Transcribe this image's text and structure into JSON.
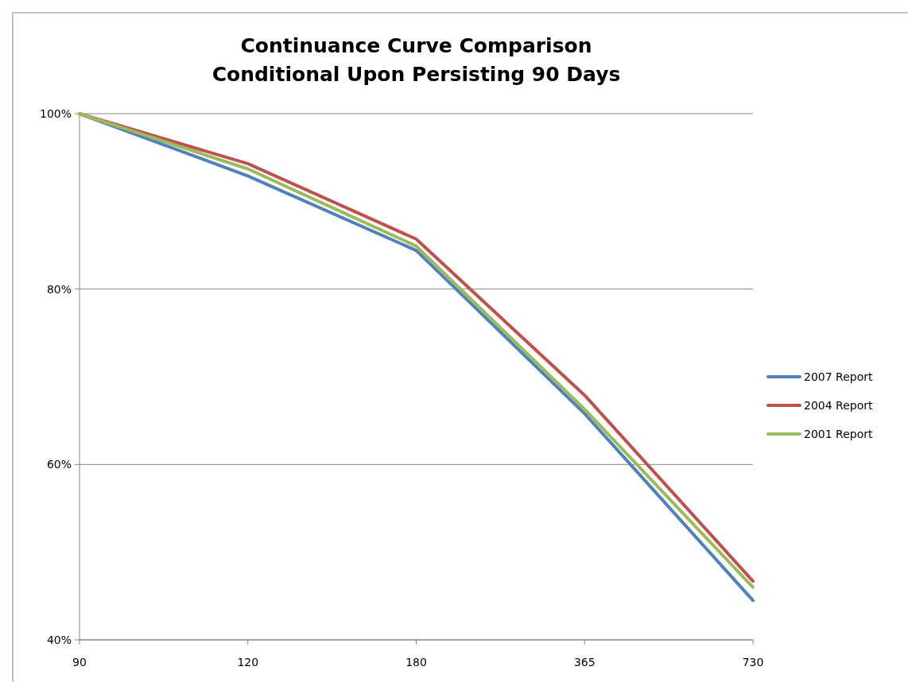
{
  "chart_data": {
    "type": "line",
    "title": "Continuance Curve Comparison\nConditional Upon Persisting 90 Days",
    "categories": [
      "90",
      "120",
      "180",
      "365",
      "730"
    ],
    "series": [
      {
        "name": "2007 Report",
        "color": "#4f81bd",
        "values": [
          100,
          92.9,
          84.4,
          65.8,
          44.5
        ]
      },
      {
        "name": "2004 Report",
        "color": "#c0504d",
        "values": [
          100,
          94.3,
          85.7,
          67.9,
          46.7
        ]
      },
      {
        "name": "2001 Report",
        "color": "#9bbb59",
        "values": [
          100,
          93.7,
          84.9,
          66.3,
          46.0
        ]
      }
    ],
    "ylim": [
      40,
      100
    ],
    "yticks": [
      {
        "value": 40,
        "label": "40%"
      },
      {
        "value": 60,
        "label": "60%"
      },
      {
        "value": 80,
        "label": "80%"
      },
      {
        "value": 100,
        "label": "100%"
      }
    ],
    "grid": "y",
    "legend": "right",
    "marker": "none",
    "line_style": "solid"
  }
}
